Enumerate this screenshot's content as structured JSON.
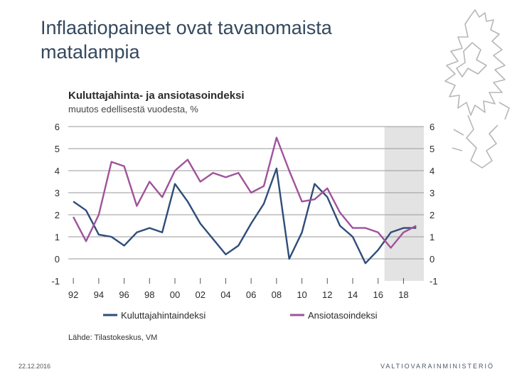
{
  "slide": {
    "title": "Inflaatiopaineet ovat tavanomaista matalampia",
    "date": "22.12.2016",
    "brand": "VALTIOVARAINMINISTERIÖ"
  },
  "colors": {
    "cpi": "#2e4d79",
    "wage": "#a0529a",
    "shade": "#e3e3e3",
    "grid": "#9a9a9a",
    "text": "#2b2b2b"
  },
  "chart_data": {
    "type": "line",
    "title": "Kuluttajahinta- ja ansiotasoindeksi",
    "subtitle": "muutos edellisestä vuodesta, %",
    "source": "Lähde: Tilastokeskus, VM",
    "x": [
      1992,
      1993,
      1994,
      1995,
      1996,
      1997,
      1998,
      1999,
      2000,
      2001,
      2002,
      2003,
      2004,
      2005,
      2006,
      2007,
      2008,
      2009,
      2010,
      2011,
      2012,
      2013,
      2014,
      2015,
      2016,
      2017,
      2018,
      2019
    ],
    "xlim": [
      1991.6,
      2019.6
    ],
    "ylim": [
      -1,
      6
    ],
    "yticks": [
      -1,
      0,
      1,
      2,
      3,
      4,
      5,
      6
    ],
    "ytick_labels": [
      "-1",
      "0",
      "1",
      "2",
      "3",
      "4",
      "5",
      "6"
    ],
    "xticks": [
      1992,
      1994,
      1996,
      1998,
      2000,
      2002,
      2004,
      2006,
      2008,
      2010,
      2012,
      2014,
      2016,
      2018
    ],
    "xtick_labels": [
      "92",
      "94",
      "96",
      "98",
      "00",
      "02",
      "04",
      "06",
      "08",
      "10",
      "12",
      "14",
      "16",
      "18"
    ],
    "forecast_start": 2016.5,
    "grid": true,
    "legend_position": "bottom",
    "series": [
      {
        "name": "Kuluttajahintaindeksi",
        "color": "#2e4d79",
        "values": [
          2.6,
          2.2,
          1.1,
          1.0,
          0.6,
          1.2,
          1.4,
          1.2,
          3.4,
          2.6,
          1.6,
          0.9,
          0.2,
          0.6,
          1.6,
          2.5,
          4.1,
          0.0,
          1.2,
          3.4,
          2.8,
          1.5,
          1.0,
          -0.2,
          0.4,
          1.2,
          1.4,
          1.4
        ]
      },
      {
        "name": "Ansiotasoindeksi",
        "color": "#a0529a",
        "values": [
          1.9,
          0.8,
          2.0,
          4.4,
          4.2,
          2.4,
          3.5,
          2.8,
          4.0,
          4.5,
          3.5,
          3.9,
          3.7,
          3.9,
          3.0,
          3.3,
          5.5,
          4.0,
          2.6,
          2.7,
          3.2,
          2.1,
          1.4,
          1.4,
          1.2,
          0.5,
          1.2,
          1.5
        ]
      }
    ]
  }
}
